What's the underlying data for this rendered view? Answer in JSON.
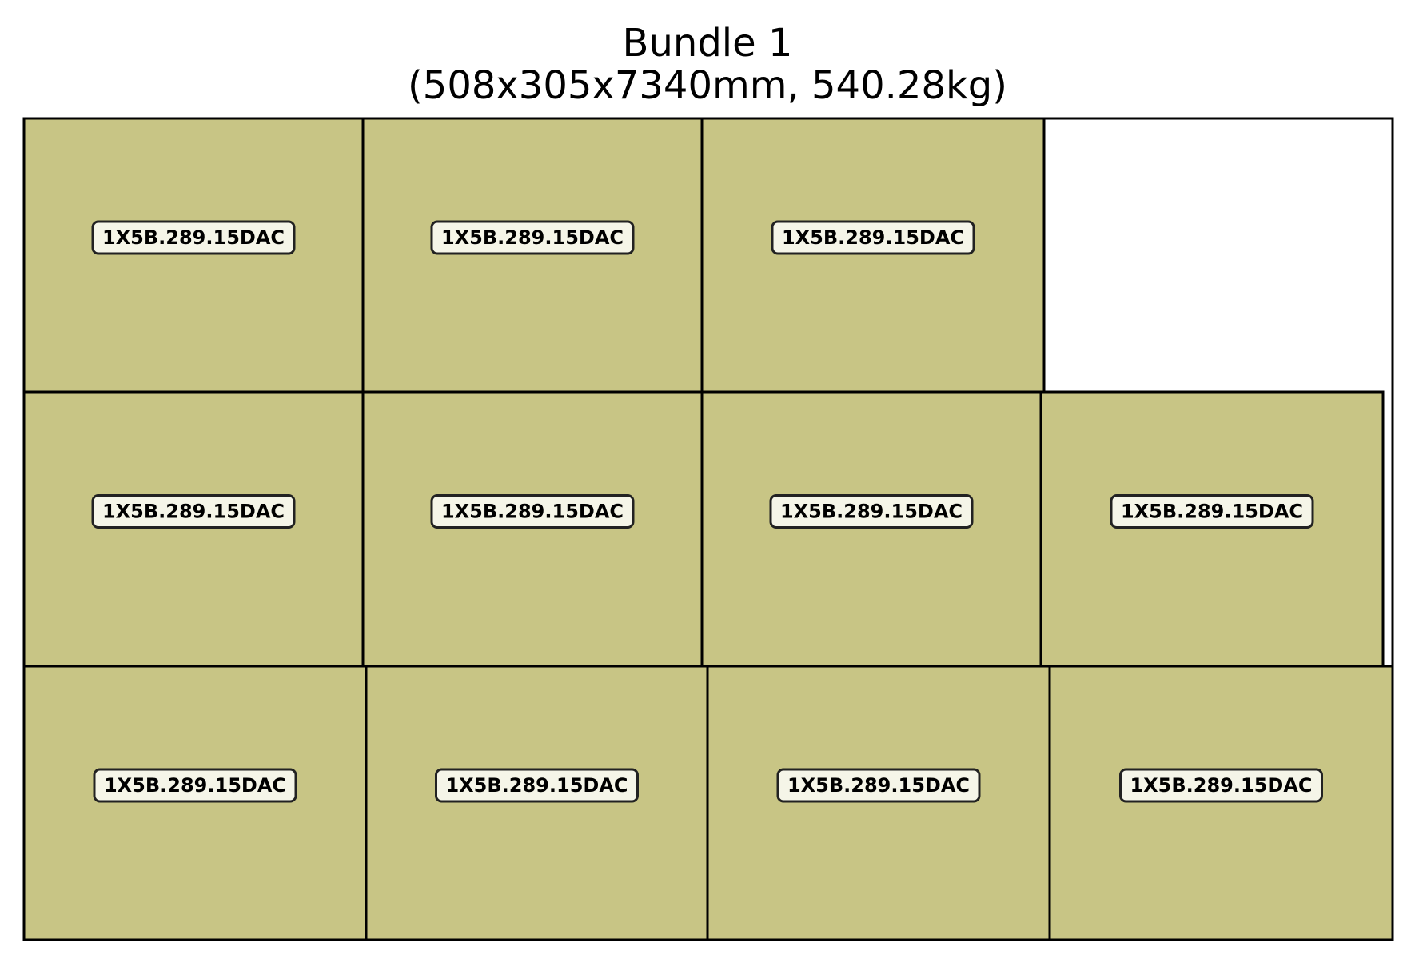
{
  "diagram": {
    "title_line1": "Bundle 1",
    "title_line2": "(508x305x7340mm, 540.28kg)",
    "colors": {
      "piece_fill": "#c8c585",
      "label_fill": "#f5f5e8",
      "stroke": "#000000",
      "label_stroke": "#222222",
      "background": "#ffffff"
    },
    "rows": [
      {
        "pieces": [
          "1X5B.289.15DAC",
          "1X5B.289.15DAC",
          "1X5B.289.15DAC"
        ]
      },
      {
        "pieces": [
          "1X5B.289.15DAC",
          "1X5B.289.15DAC",
          "1X5B.289.15DAC",
          "1X5B.289.15DAC"
        ]
      },
      {
        "pieces": [
          "1X5B.289.15DAC",
          "1X5B.289.15DAC",
          "1X5B.289.15DAC",
          "1X5B.289.15DAC"
        ]
      }
    ]
  }
}
